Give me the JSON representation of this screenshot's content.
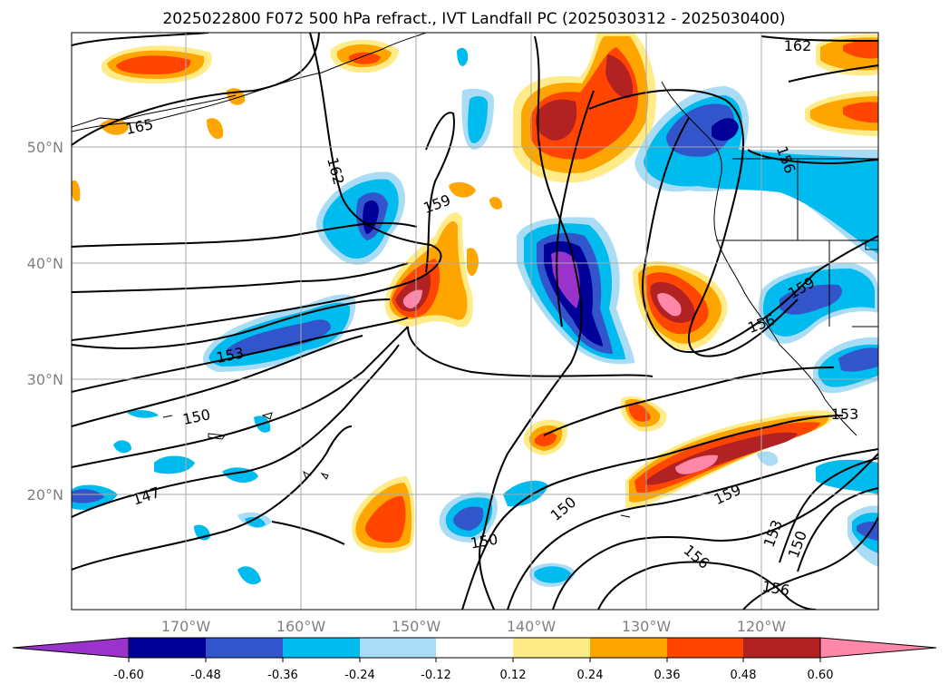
{
  "title": "2025022800 F072 500 hPa refract., IVT Landfall PC (2025030312 - 2025030400)",
  "lat_labels": [
    "50°N",
    "40°N",
    "30°N",
    "20°N"
  ],
  "lon_labels": [
    "170°W",
    "160°W",
    "150°W",
    "140°W",
    "130°W",
    "120°W"
  ],
  "colorbar": {
    "colors": [
      "#9933cc",
      "#000099",
      "#3355cc",
      "#00bbee",
      "#aaddf5",
      "#ffffff",
      "#ffeb88",
      "#ffa500",
      "#ff4500",
      "#b22222",
      "#ff88aa"
    ],
    "ticks": [
      "-0.60",
      "-0.48",
      "-0.36",
      "-0.24",
      "-0.12",
      "0.12",
      "0.24",
      "0.36",
      "0.48",
      "0.60"
    ]
  },
  "contour_labels": [
    "165",
    "162",
    "159",
    "156",
    "153",
    "150",
    "147",
    "162",
    "159",
    "156",
    "153",
    "153",
    "150",
    "159",
    "156",
    "156",
    "150"
  ]
}
